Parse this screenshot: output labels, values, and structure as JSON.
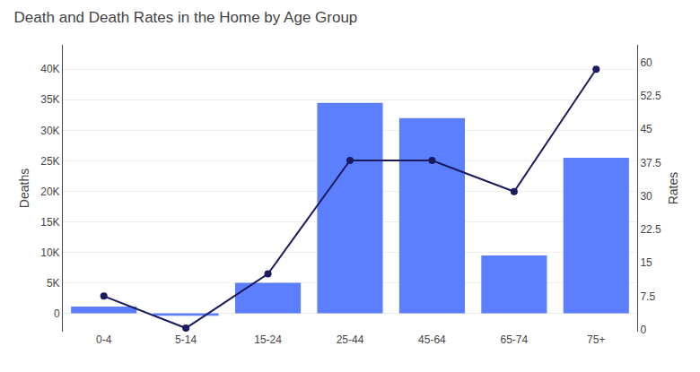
{
  "chart_data": {
    "type": "bar",
    "title": "Death and Death Rates in the Home by Age Group",
    "categories": [
      "0-4",
      "5-14",
      "15-24",
      "25-44",
      "45-64",
      "65-74",
      "75+"
    ],
    "series": [
      {
        "type": "bar",
        "color": "#5b7fff",
        "values": [
          1100,
          -400,
          5000,
          34500,
          32000,
          9500,
          25500
        ]
      },
      {
        "type": "line",
        "axis": "y2",
        "color": "#1a1a5e",
        "marker": "circle",
        "values": [
          7.5,
          0.3,
          12.5,
          38.0,
          38.0,
          31.0,
          58.5
        ]
      }
    ],
    "ylabel": "Deaths",
    "y2label": "Rates",
    "ylim": [
      -3000,
      44000
    ],
    "yticks": [
      0,
      {
        "value": 5000,
        "label": "5K"
      },
      {
        "value": 10000,
        "label": "10K"
      },
      {
        "value": 15000,
        "label": "15K"
      },
      {
        "value": 20000,
        "label": "20K"
      },
      {
        "value": 25000,
        "label": "25K"
      },
      {
        "value": 30000,
        "label": "30K"
      },
      {
        "value": 35000,
        "label": "35K"
      },
      {
        "value": 40000,
        "label": "40K"
      }
    ],
    "y2lim": [
      -0.5,
      64
    ],
    "y2ticks": [
      0,
      7.5,
      15,
      22.5,
      30,
      37.5,
      45,
      52.5,
      60
    ],
    "grid": true
  }
}
